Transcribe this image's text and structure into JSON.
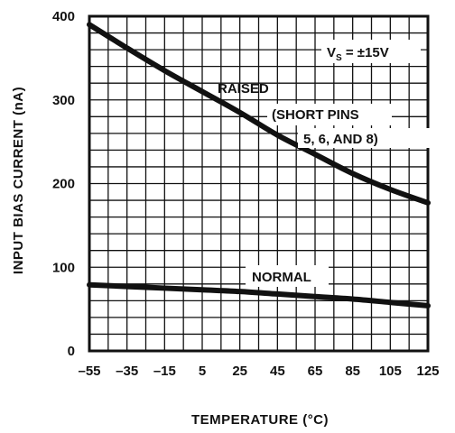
{
  "chart_data": {
    "type": "line",
    "xlabel": "TEMPERATURE (°C)",
    "ylabel": "INPUT BIAS CURRENT (nA)",
    "xlim": [
      -55,
      125
    ],
    "ylim": [
      0,
      400
    ],
    "x_ticks": [
      -55,
      -35,
      -15,
      5,
      25,
      45,
      65,
      85,
      105,
      125
    ],
    "y_ticks": [
      0,
      100,
      200,
      300,
      400
    ],
    "grid": true,
    "x_minor_step": 10,
    "y_minor_step": 20,
    "series": [
      {
        "name": "RAISED",
        "x": [
          -55,
          -35,
          -15,
          5,
          25,
          45,
          65,
          85,
          105,
          125
        ],
        "y": [
          390,
          362,
          335,
          310,
          285,
          258,
          235,
          212,
          193,
          177
        ]
      },
      {
        "name": "NORMAL",
        "x": [
          -55,
          -35,
          -15,
          5,
          25,
          45,
          65,
          85,
          105,
          125
        ],
        "y": [
          79,
          77,
          75,
          73,
          71,
          68,
          65,
          62,
          58,
          54
        ]
      }
    ],
    "annotations": {
      "vs": "V",
      "vs_sub": "S",
      "vs_rest": " = ±15V",
      "short_pins_1": "(SHORT PINS",
      "short_pins_2": "5, 6, AND 8)"
    }
  }
}
